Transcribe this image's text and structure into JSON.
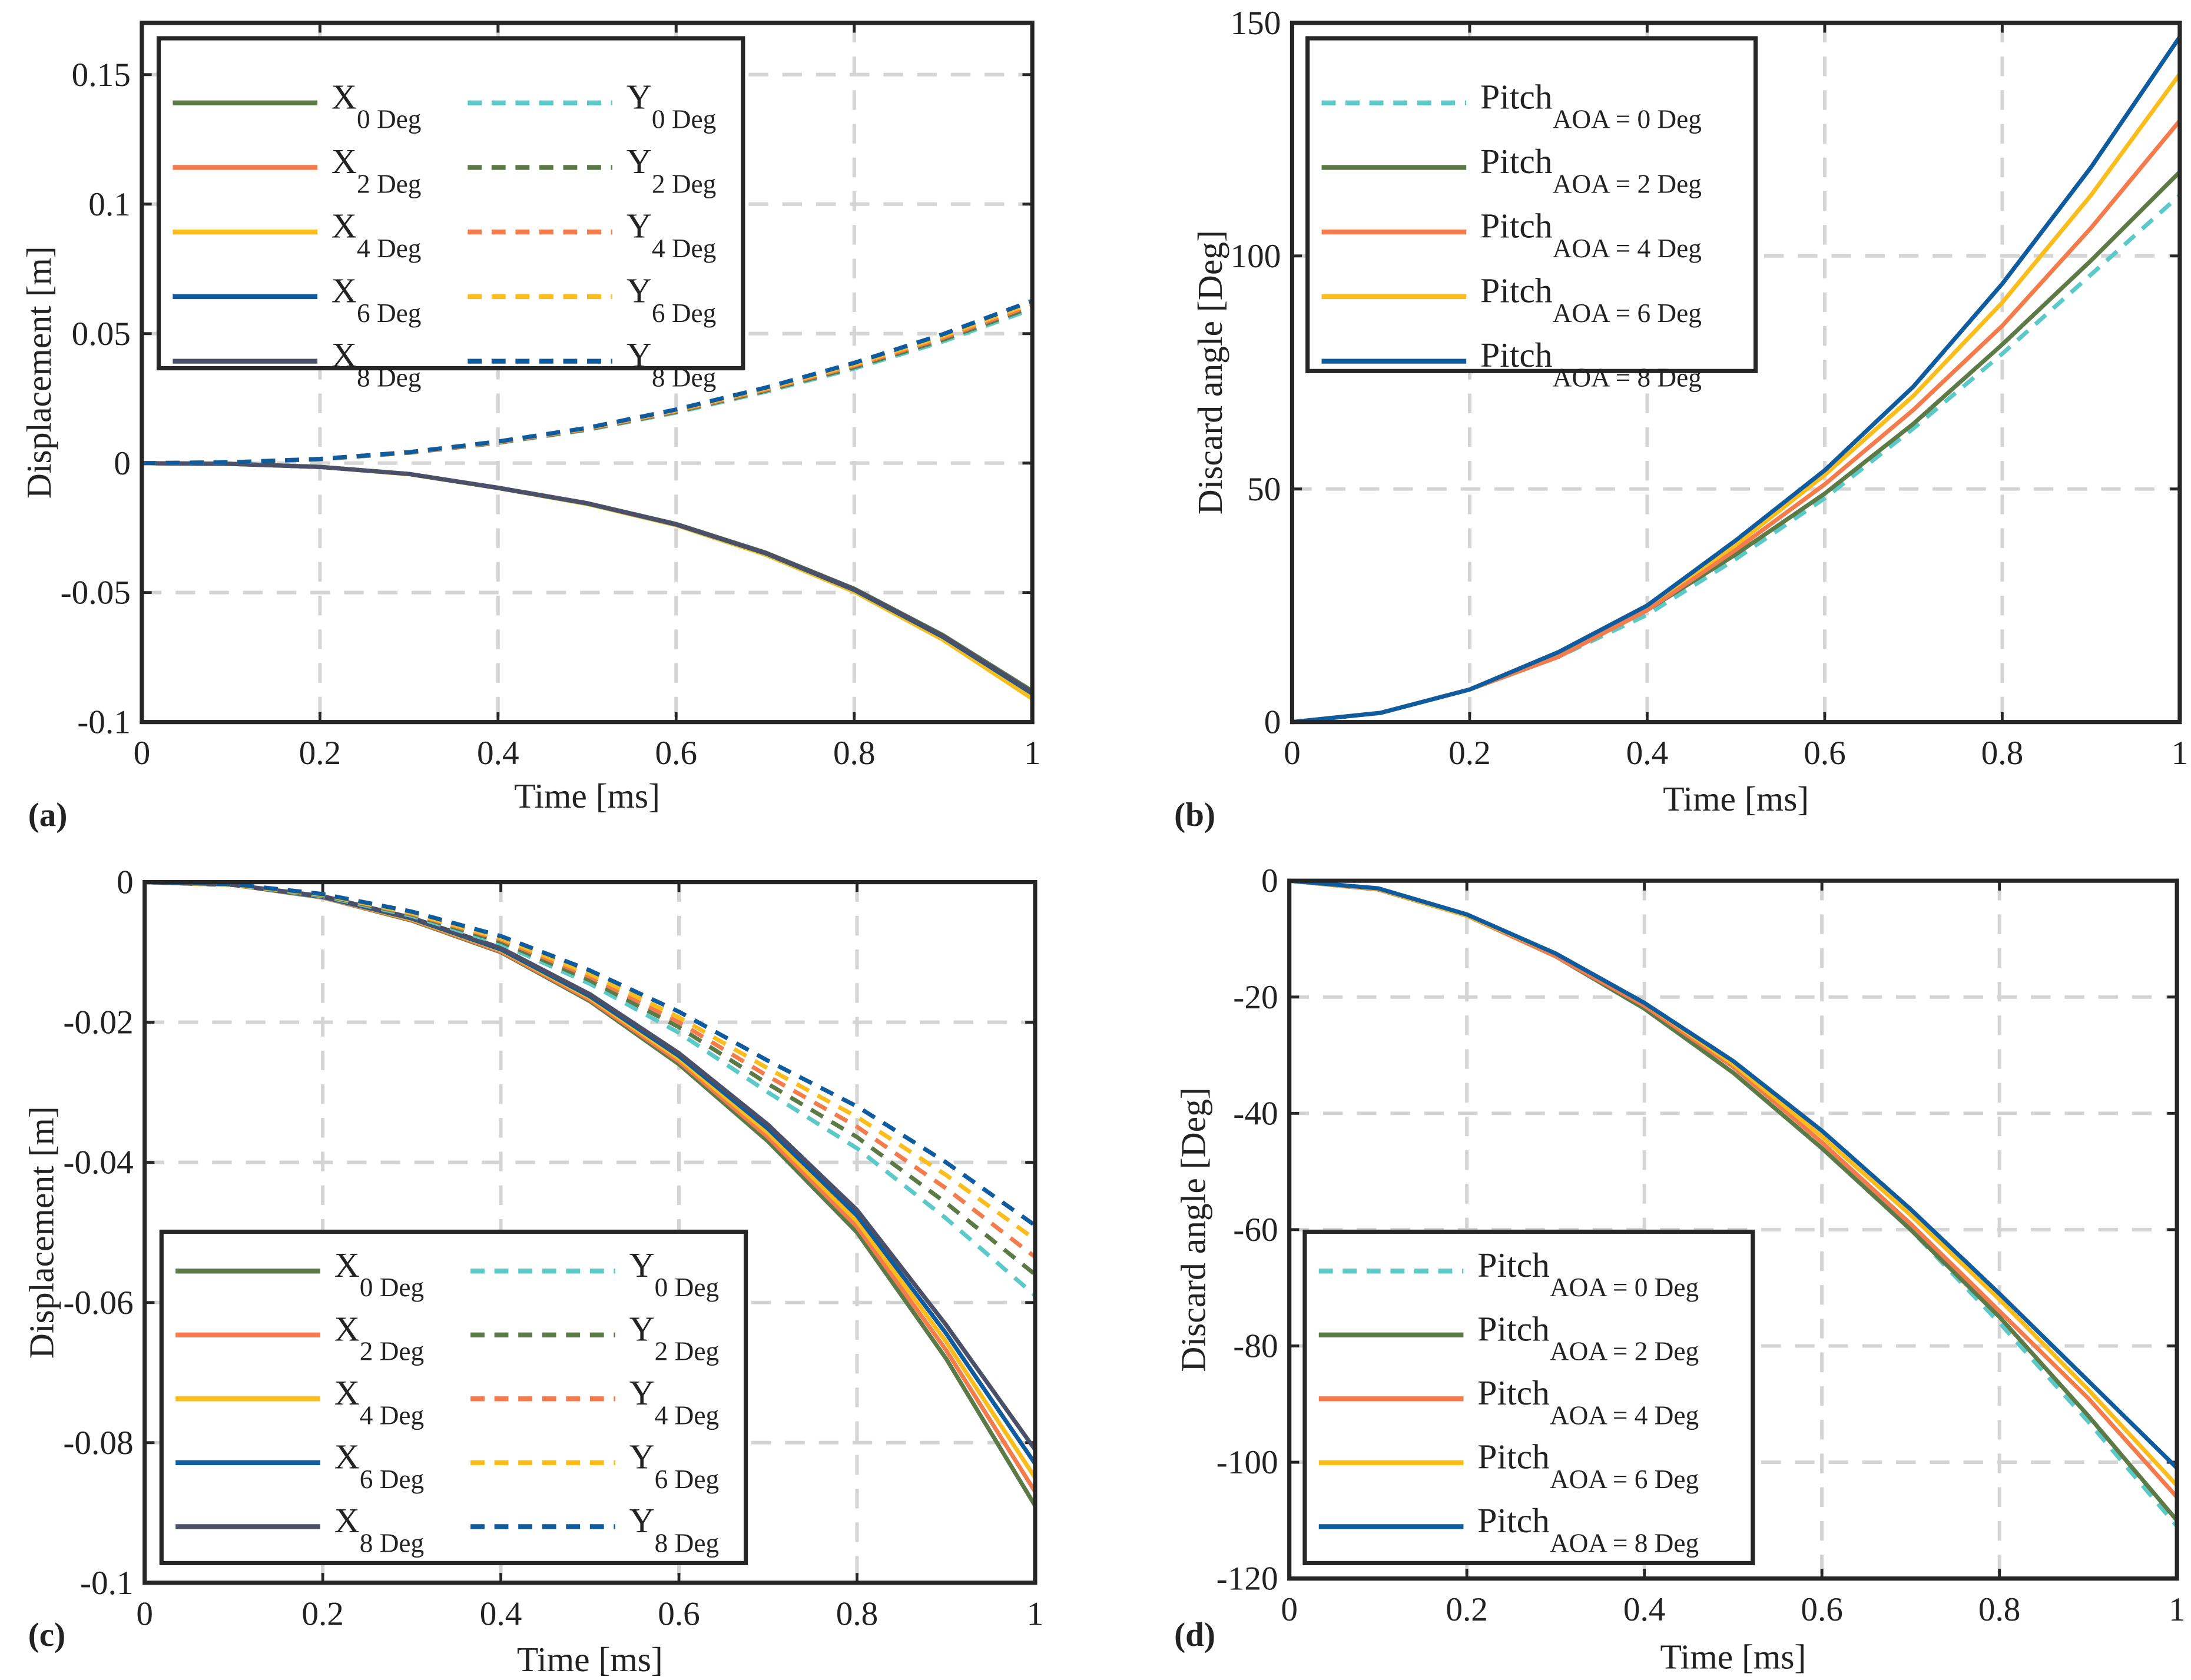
{
  "colors": {
    "green": "#5b7a46",
    "orange": "#f47b4c",
    "yellow": "#fbbd1c",
    "blue": "#0e5c9f",
    "gray": "#4b5068",
    "cyan": "#5cc9c9",
    "grid": "#d4d4d4",
    "axis": "#262626"
  },
  "chart_data": [
    {
      "panel": "(a)",
      "type": "line",
      "xlabel": "Time [ms]",
      "ylabel": "Displacement [m]",
      "xlim": [
        0,
        1
      ],
      "ylim": [
        -0.1,
        0.17
      ],
      "xticks": [
        0,
        0.2,
        0.4,
        0.6,
        0.8,
        1
      ],
      "xticklabels": [
        "0",
        "0.2",
        "0.4",
        "0.6",
        "0.8",
        "1"
      ],
      "yticks": [
        -0.1,
        -0.05,
        0,
        0.05,
        0.1,
        0.15
      ],
      "yticklabels": [
        "-0.1",
        "-0.05",
        "0",
        "0.05",
        "0.1",
        "0.15"
      ],
      "grid": true,
      "legend": "top-left",
      "x": [
        0,
        0.1,
        0.2,
        0.3,
        0.4,
        0.5,
        0.6,
        0.7,
        0.8,
        0.9,
        1
      ],
      "series": [
        {
          "name": "X",
          "sub": "0 Deg",
          "color": "green",
          "dash": false,
          "values": [
            0,
            -0.0003,
            -0.0015,
            -0.0042,
            -0.0095,
            -0.0155,
            -0.0235,
            -0.0345,
            -0.0485,
            -0.0665,
            -0.088
          ]
        },
        {
          "name": "X",
          "sub": "2 Deg",
          "color": "orange",
          "dash": false,
          "values": [
            0,
            -0.0003,
            -0.0015,
            -0.0042,
            -0.0096,
            -0.0157,
            -0.0238,
            -0.035,
            -0.0492,
            -0.0675,
            -0.0895
          ]
        },
        {
          "name": "X",
          "sub": "4 Deg",
          "color": "yellow",
          "dash": false,
          "values": [
            0,
            -0.0003,
            -0.0015,
            -0.0043,
            -0.0097,
            -0.0158,
            -0.024,
            -0.0353,
            -0.0497,
            -0.0683,
            -0.091
          ]
        },
        {
          "name": "X",
          "sub": "6 Deg",
          "color": "blue",
          "dash": false,
          "values": [
            0,
            -0.0003,
            -0.0015,
            -0.0042,
            -0.0096,
            -0.0156,
            -0.0237,
            -0.0348,
            -0.049,
            -0.0672,
            -0.089
          ]
        },
        {
          "name": "X",
          "sub": "8 Deg",
          "color": "gray",
          "dash": false,
          "values": [
            0,
            -0.0003,
            -0.0015,
            -0.0042,
            -0.0095,
            -0.0155,
            -0.0236,
            -0.0346,
            -0.0487,
            -0.0668,
            -0.0885
          ]
        },
        {
          "name": "Y",
          "sub": "0 Deg",
          "color": "cyan",
          "dash": true,
          "values": [
            0,
            0.0003,
            0.0015,
            0.004,
            0.0078,
            0.0128,
            0.0195,
            0.0275,
            0.0365,
            0.047,
            0.0595
          ]
        },
        {
          "name": "Y",
          "sub": "2 Deg",
          "color": "green",
          "dash": true,
          "values": [
            0,
            0.0003,
            0.0015,
            0.004,
            0.0079,
            0.013,
            0.0198,
            0.0279,
            0.037,
            0.0477,
            0.0603
          ]
        },
        {
          "name": "Y",
          "sub": "4 Deg",
          "color": "orange",
          "dash": true,
          "values": [
            0,
            0.0003,
            0.0016,
            0.0041,
            0.008,
            0.0132,
            0.0201,
            0.0283,
            0.0376,
            0.0484,
            0.0611
          ]
        },
        {
          "name": "Y",
          "sub": "6 Deg",
          "color": "yellow",
          "dash": true,
          "values": [
            0,
            0.0003,
            0.0016,
            0.0042,
            0.0082,
            0.0134,
            0.0204,
            0.0287,
            0.0381,
            0.0491,
            0.0619
          ]
        },
        {
          "name": "Y",
          "sub": "8 Deg",
          "color": "blue",
          "dash": true,
          "values": [
            0,
            0.0003,
            0.0016,
            0.0042,
            0.0083,
            0.0136,
            0.0207,
            0.0291,
            0.0387,
            0.0498,
            0.0627
          ]
        }
      ]
    },
    {
      "panel": "(b)",
      "type": "line",
      "xlabel": "Time [ms]",
      "ylabel": "Discard angle [Deg]",
      "xlim": [
        0,
        1
      ],
      "ylim": [
        0,
        150
      ],
      "xticks": [
        0,
        0.2,
        0.4,
        0.6,
        0.8,
        1
      ],
      "xticklabels": [
        "0",
        "0.2",
        "0.4",
        "0.6",
        "0.8",
        "1"
      ],
      "yticks": [
        0,
        50,
        100,
        150
      ],
      "yticklabels": [
        "0",
        "50",
        "100",
        "150"
      ],
      "grid": true,
      "legend": "top-left",
      "x": [
        0,
        0.1,
        0.2,
        0.3,
        0.4,
        0.5,
        0.6,
        0.7,
        0.8,
        0.9,
        1
      ],
      "series": [
        {
          "name": "Pitch",
          "sub": "AOA = 0 Deg",
          "color": "cyan",
          "dash": true,
          "values": [
            0,
            2,
            7,
            14,
            23,
            35,
            48,
            63,
            79,
            96,
            113
          ]
        },
        {
          "name": "Pitch",
          "sub": "AOA = 2 Deg",
          "color": "green",
          "dash": false,
          "values": [
            0,
            2,
            7,
            14,
            24,
            36,
            49,
            64,
            81,
            99,
            118
          ]
        },
        {
          "name": "Pitch",
          "sub": "AOA = 4 Deg",
          "color": "orange",
          "dash": false,
          "values": [
            0,
            2,
            7,
            14,
            24,
            37,
            51,
            67,
            85,
            106,
            129
          ]
        },
        {
          "name": "Pitch",
          "sub": "AOA = 6 Deg",
          "color": "yellow",
          "dash": false,
          "values": [
            0,
            2,
            7,
            15,
            25,
            38,
            53,
            70,
            90,
            113,
            139
          ]
        },
        {
          "name": "Pitch",
          "sub": "AOA = 8 Deg",
          "color": "blue",
          "dash": false,
          "values": [
            0,
            2,
            7,
            15,
            25,
            39,
            54,
            72,
            94,
            119,
            147
          ]
        }
      ]
    },
    {
      "panel": "(c)",
      "type": "line",
      "xlabel": "Time [ms]",
      "ylabel": "Displacement [m]",
      "xlim": [
        0,
        1
      ],
      "ylim": [
        -0.1,
        0
      ],
      "xticks": [
        0,
        0.2,
        0.4,
        0.6,
        0.8,
        1
      ],
      "xticklabels": [
        "0",
        "0.2",
        "0.4",
        "0.6",
        "0.8",
        "1"
      ],
      "yticks": [
        -0.1,
        -0.08,
        -0.06,
        -0.04,
        -0.02,
        0
      ],
      "yticklabels": [
        "-0.1",
        "-0.08",
        "-0.06",
        "-0.04",
        "-0.02",
        "0"
      ],
      "grid": true,
      "legend": "bottom-left",
      "x": [
        0,
        0.1,
        0.2,
        0.3,
        0.4,
        0.5,
        0.6,
        0.7,
        0.8,
        0.9,
        1
      ],
      "series": [
        {
          "name": "X",
          "sub": "0 Deg",
          "color": "green",
          "dash": false,
          "values": [
            0,
            -0.0004,
            -0.0022,
            -0.0055,
            -0.01,
            -0.017,
            -0.026,
            -0.037,
            -0.05,
            -0.068,
            -0.089
          ]
        },
        {
          "name": "X",
          "sub": "2 Deg",
          "color": "orange",
          "dash": false,
          "values": [
            0,
            -0.0004,
            -0.0022,
            -0.0054,
            -0.0099,
            -0.0168,
            -0.0256,
            -0.0364,
            -0.0492,
            -0.0668,
            -0.087
          ]
        },
        {
          "name": "X",
          "sub": "4 Deg",
          "color": "yellow",
          "dash": false,
          "values": [
            0,
            -0.0004,
            -0.0021,
            -0.0053,
            -0.0097,
            -0.0165,
            -0.0252,
            -0.0358,
            -0.0484,
            -0.0656,
            -0.085
          ]
        },
        {
          "name": "X",
          "sub": "6 Deg",
          "color": "blue",
          "dash": false,
          "values": [
            0,
            -0.0004,
            -0.0021,
            -0.0052,
            -0.0096,
            -0.0163,
            -0.0248,
            -0.0352,
            -0.0476,
            -0.0644,
            -0.083
          ]
        },
        {
          "name": "X",
          "sub": "8 Deg",
          "color": "gray",
          "dash": false,
          "values": [
            0,
            -0.0004,
            -0.002,
            -0.0051,
            -0.0094,
            -0.016,
            -0.0244,
            -0.0346,
            -0.0468,
            -0.0632,
            -0.081
          ]
        },
        {
          "name": "Y",
          "sub": "0 Deg",
          "color": "cyan",
          "dash": true,
          "values": [
            0,
            -0.0004,
            -0.002,
            -0.0048,
            -0.0088,
            -0.0145,
            -0.0215,
            -0.03,
            -0.038,
            -0.048,
            -0.059
          ]
        },
        {
          "name": "Y",
          "sub": "2 Deg",
          "color": "green",
          "dash": true,
          "values": [
            0,
            -0.0004,
            -0.0019,
            -0.0046,
            -0.0085,
            -0.014,
            -0.0207,
            -0.0288,
            -0.0364,
            -0.0458,
            -0.056
          ]
        },
        {
          "name": "Y",
          "sub": "4 Deg",
          "color": "orange",
          "dash": true,
          "values": [
            0,
            -0.0004,
            -0.0018,
            -0.0045,
            -0.0082,
            -0.0135,
            -0.02,
            -0.0277,
            -0.0349,
            -0.0437,
            -0.0535
          ]
        },
        {
          "name": "Y",
          "sub": "6 Deg",
          "color": "yellow",
          "dash": true,
          "values": [
            0,
            -0.0004,
            -0.0018,
            -0.0044,
            -0.008,
            -0.0131,
            -0.0193,
            -0.0266,
            -0.0335,
            -0.0418,
            -0.051
          ]
        },
        {
          "name": "Y",
          "sub": "8 Deg",
          "color": "blue",
          "dash": true,
          "values": [
            0,
            -0.0003,
            -0.0017,
            -0.0042,
            -0.0077,
            -0.0126,
            -0.0185,
            -0.0255,
            -0.032,
            -0.04,
            -0.049
          ]
        }
      ]
    },
    {
      "panel": "(d)",
      "type": "line",
      "xlabel": "Time [ms]",
      "ylabel": "Discard angle [Deg]",
      "xlim": [
        0,
        1
      ],
      "ylim": [
        -120,
        0
      ],
      "xticks": [
        0,
        0.2,
        0.4,
        0.6,
        0.8,
        1
      ],
      "xticklabels": [
        "0",
        "0.2",
        "0.4",
        "0.6",
        "0.8",
        "1"
      ],
      "yticks": [
        -120,
        -100,
        -80,
        -60,
        -40,
        -20,
        0
      ],
      "yticklabels": [
        "-120",
        "-100",
        "-80",
        "-60",
        "-40",
        "-20",
        "0"
      ],
      "grid": true,
      "legend": "bottom-left",
      "x": [
        0,
        0.1,
        0.2,
        0.3,
        0.4,
        0.5,
        0.6,
        0.7,
        0.8,
        0.9,
        1
      ],
      "series": [
        {
          "name": "Pitch",
          "sub": "AOA = 0 Deg",
          "color": "cyan",
          "dash": true,
          "values": [
            0,
            -1.5,
            -6,
            -13,
            -22,
            -33,
            -46,
            -60,
            -76,
            -93,
            -111
          ]
        },
        {
          "name": "Pitch",
          "sub": "AOA = 2 Deg",
          "color": "green",
          "dash": false,
          "values": [
            0,
            -1.5,
            -6,
            -13,
            -22,
            -33,
            -46,
            -60,
            -75,
            -92,
            -110
          ]
        },
        {
          "name": "Pitch",
          "sub": "AOA = 4 Deg",
          "color": "orange",
          "dash": false,
          "values": [
            0,
            -1.5,
            -6,
            -13,
            -21.5,
            -32,
            -45,
            -59,
            -74,
            -89,
            -106
          ]
        },
        {
          "name": "Pitch",
          "sub": "AOA = 6 Deg",
          "color": "yellow",
          "dash": false,
          "values": [
            0,
            -1.4,
            -6,
            -12.5,
            -21,
            -31.5,
            -44,
            -57.5,
            -72,
            -87.5,
            -104
          ]
        },
        {
          "name": "Pitch",
          "sub": "AOA = 8 Deg",
          "color": "blue",
          "dash": false,
          "values": [
            0,
            -1.3,
            -5.8,
            -12.5,
            -21,
            -31,
            -43,
            -56.5,
            -71,
            -86,
            -101
          ]
        }
      ]
    }
  ]
}
